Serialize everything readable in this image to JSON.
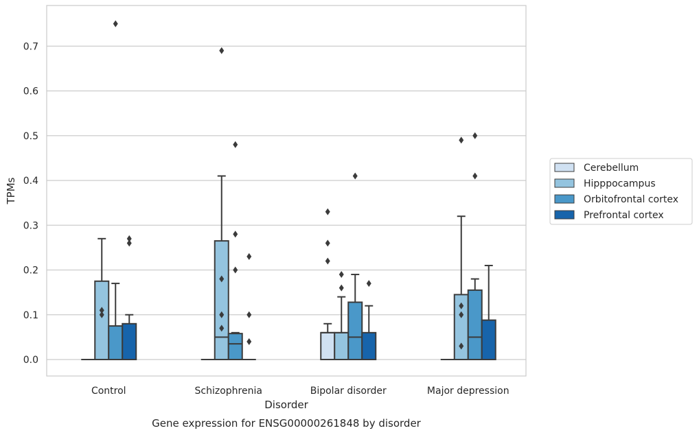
{
  "chart_data": {
    "type": "box",
    "caption": "Gene expression for ENSG00000261848 by disorder",
    "xlabel": "Disorder",
    "ylabel": "TPMs",
    "ylim": [
      -0.037,
      0.79
    ],
    "yticks": [
      "0.0",
      "0.1",
      "0.2",
      "0.3",
      "0.4",
      "0.5",
      "0.6",
      "0.7"
    ],
    "grid": true,
    "legend_placement": "right-outside",
    "categories": [
      "Control",
      "Schizophrenia",
      "Bipolar disorder",
      "Major depression"
    ],
    "series": [
      {
        "name": "Cerebellum",
        "color": "#d0e1f2",
        "boxes": [
          {
            "q1": 0,
            "median": 0,
            "q3": 0,
            "whisker_low": 0,
            "whisker_high": 0,
            "outliers": []
          },
          {
            "q1": 0,
            "median": 0,
            "q3": 0,
            "whisker_low": 0,
            "whisker_high": 0,
            "outliers": []
          },
          {
            "q1": 0,
            "median": 0.06,
            "q3": 0.06,
            "whisker_low": 0,
            "whisker_high": 0.08,
            "outliers": [
              0.22,
              0.26,
              0.33
            ]
          },
          {
            "q1": 0,
            "median": 0,
            "q3": 0,
            "whisker_low": 0,
            "whisker_high": 0,
            "outliers": []
          }
        ]
      },
      {
        "name": "Hipppocampus",
        "color": "#94c4df",
        "boxes": [
          {
            "q1": 0,
            "median": 0,
            "q3": 0.175,
            "whisker_low": 0,
            "whisker_high": 0.27,
            "outliers": [
              0.1,
              0.11
            ]
          },
          {
            "q1": 0,
            "median": 0.05,
            "q3": 0.265,
            "whisker_low": 0,
            "whisker_high": 0.41,
            "outliers": [
              0.07,
              0.1,
              0.18,
              0.69
            ]
          },
          {
            "q1": 0,
            "median": 0.06,
            "q3": 0.06,
            "whisker_low": 0,
            "whisker_high": 0.14,
            "outliers": [
              0.16,
              0.19
            ]
          },
          {
            "q1": 0,
            "median": 0,
            "q3": 0.145,
            "whisker_low": 0,
            "whisker_high": 0.32,
            "outliers": [
              0.03,
              0.1,
              0.12,
              0.49
            ]
          }
        ]
      },
      {
        "name": "Orbitofrontal cortex",
        "color": "#4a98c9",
        "boxes": [
          {
            "q1": 0,
            "median": 0,
            "q3": 0.075,
            "whisker_low": 0,
            "whisker_high": 0.17,
            "outliers": [
              0.75
            ]
          },
          {
            "q1": 0,
            "median": 0.035,
            "q3": 0.058,
            "whisker_low": 0,
            "whisker_high": 0.06,
            "outliers": [
              0.2,
              0.28,
              0.48
            ]
          },
          {
            "q1": 0,
            "median": 0.05,
            "q3": 0.128,
            "whisker_low": 0,
            "whisker_high": 0.19,
            "outliers": [
              0.41
            ]
          },
          {
            "q1": 0,
            "median": 0.05,
            "q3": 0.155,
            "whisker_low": 0,
            "whisker_high": 0.18,
            "outliers": [
              0.41,
              0.5
            ]
          }
        ]
      },
      {
        "name": "Prefrontal cortex",
        "color": "#1764ab",
        "boxes": [
          {
            "q1": 0,
            "median": 0,
            "q3": 0.08,
            "whisker_low": 0,
            "whisker_high": 0.1,
            "outliers": [
              0.26,
              0.27
            ]
          },
          {
            "q1": 0,
            "median": 0,
            "q3": 0,
            "whisker_low": 0,
            "whisker_high": 0,
            "outliers": [
              0.04,
              0.1,
              0.23
            ]
          },
          {
            "q1": 0,
            "median": 0,
            "q3": 0.06,
            "whisker_low": 0,
            "whisker_high": 0.12,
            "outliers": [
              0.17
            ]
          },
          {
            "q1": 0,
            "median": 0,
            "q3": 0.088,
            "whisker_low": 0,
            "whisker_high": 0.21,
            "outliers": []
          }
        ]
      }
    ]
  }
}
